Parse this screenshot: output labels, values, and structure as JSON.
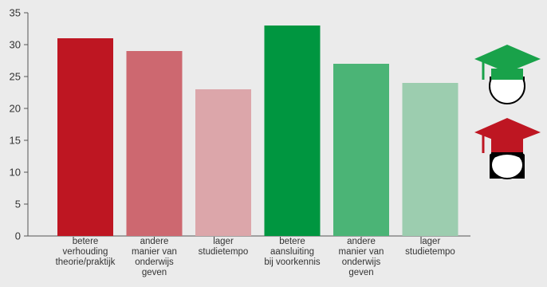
{
  "chart_data": {
    "type": "bar",
    "categories": [
      [
        "betere",
        "verhouding",
        "theorie/praktijk"
      ],
      [
        "andere",
        "manier van",
        "onderwijs",
        "geven"
      ],
      [
        "lager",
        "studietempo"
      ],
      [
        "betere",
        "aansluiting",
        "bij voorkennis"
      ],
      [
        "andere",
        "manier van",
        "onderwijs",
        "geven"
      ],
      [
        "lager",
        "studietempo"
      ]
    ],
    "values": [
      31,
      29,
      23,
      33,
      27,
      24
    ],
    "colors": [
      "#be1622",
      "#cd6870",
      "#dca6aa",
      "#009640",
      "#4bb476",
      "#9ccdaf"
    ],
    "ylim": [
      0,
      35
    ],
    "yticks": [
      0,
      5,
      10,
      15,
      20,
      25,
      30,
      35
    ],
    "grid": false,
    "legend": {
      "icons": [
        {
          "name": "graduate-green-icon",
          "cap_color": "#19a24a"
        },
        {
          "name": "graduate-red-icon",
          "cap_color": "#be1622"
        }
      ]
    }
  }
}
